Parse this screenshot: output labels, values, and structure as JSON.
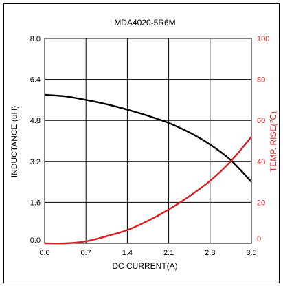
{
  "chart_data": {
    "type": "line",
    "title": "MDA4020-5R6M",
    "xlabel": "DC CURRENT(A)",
    "ylabel": "INDUCTANCE (uH)",
    "ylabel_right": "TEMP. RISE(℃)",
    "xlim": [
      0,
      3.5
    ],
    "ylim": [
      0,
      8
    ],
    "ylim_right": [
      0,
      100
    ],
    "grid": true,
    "x_ticks": [
      "0.0",
      "0.7",
      "1.4",
      "2.1",
      "2.8",
      "3.5"
    ],
    "y_ticks": [
      "0.0",
      "1.6",
      "3.2",
      "4.8",
      "6.4",
      "8.0"
    ],
    "y_ticks_right": [
      "0",
      "20",
      "40",
      "60",
      "80",
      "100"
    ],
    "colors": {
      "inductance": "#000000",
      "temp_rise": "#d42020",
      "right_axis": "#d42020"
    },
    "series": [
      {
        "axis": "left",
        "x": [
          0,
          0.35,
          0.7,
          1.05,
          1.4,
          1.75,
          2.1,
          2.45,
          2.8,
          3.15,
          3.5
        ],
        "y": [
          5.8,
          5.74,
          5.6,
          5.43,
          5.22,
          4.98,
          4.7,
          4.33,
          3.86,
          3.25,
          2.4
        ]
      },
      {
        "axis": "right",
        "x": [
          0,
          0.35,
          0.7,
          1.05,
          1.4,
          1.75,
          2.1,
          2.45,
          2.8,
          3.15,
          3.5
        ],
        "y": [
          0,
          0,
          1,
          3.5,
          6.5,
          11,
          16.5,
          23,
          30.5,
          40,
          52
        ]
      }
    ]
  }
}
